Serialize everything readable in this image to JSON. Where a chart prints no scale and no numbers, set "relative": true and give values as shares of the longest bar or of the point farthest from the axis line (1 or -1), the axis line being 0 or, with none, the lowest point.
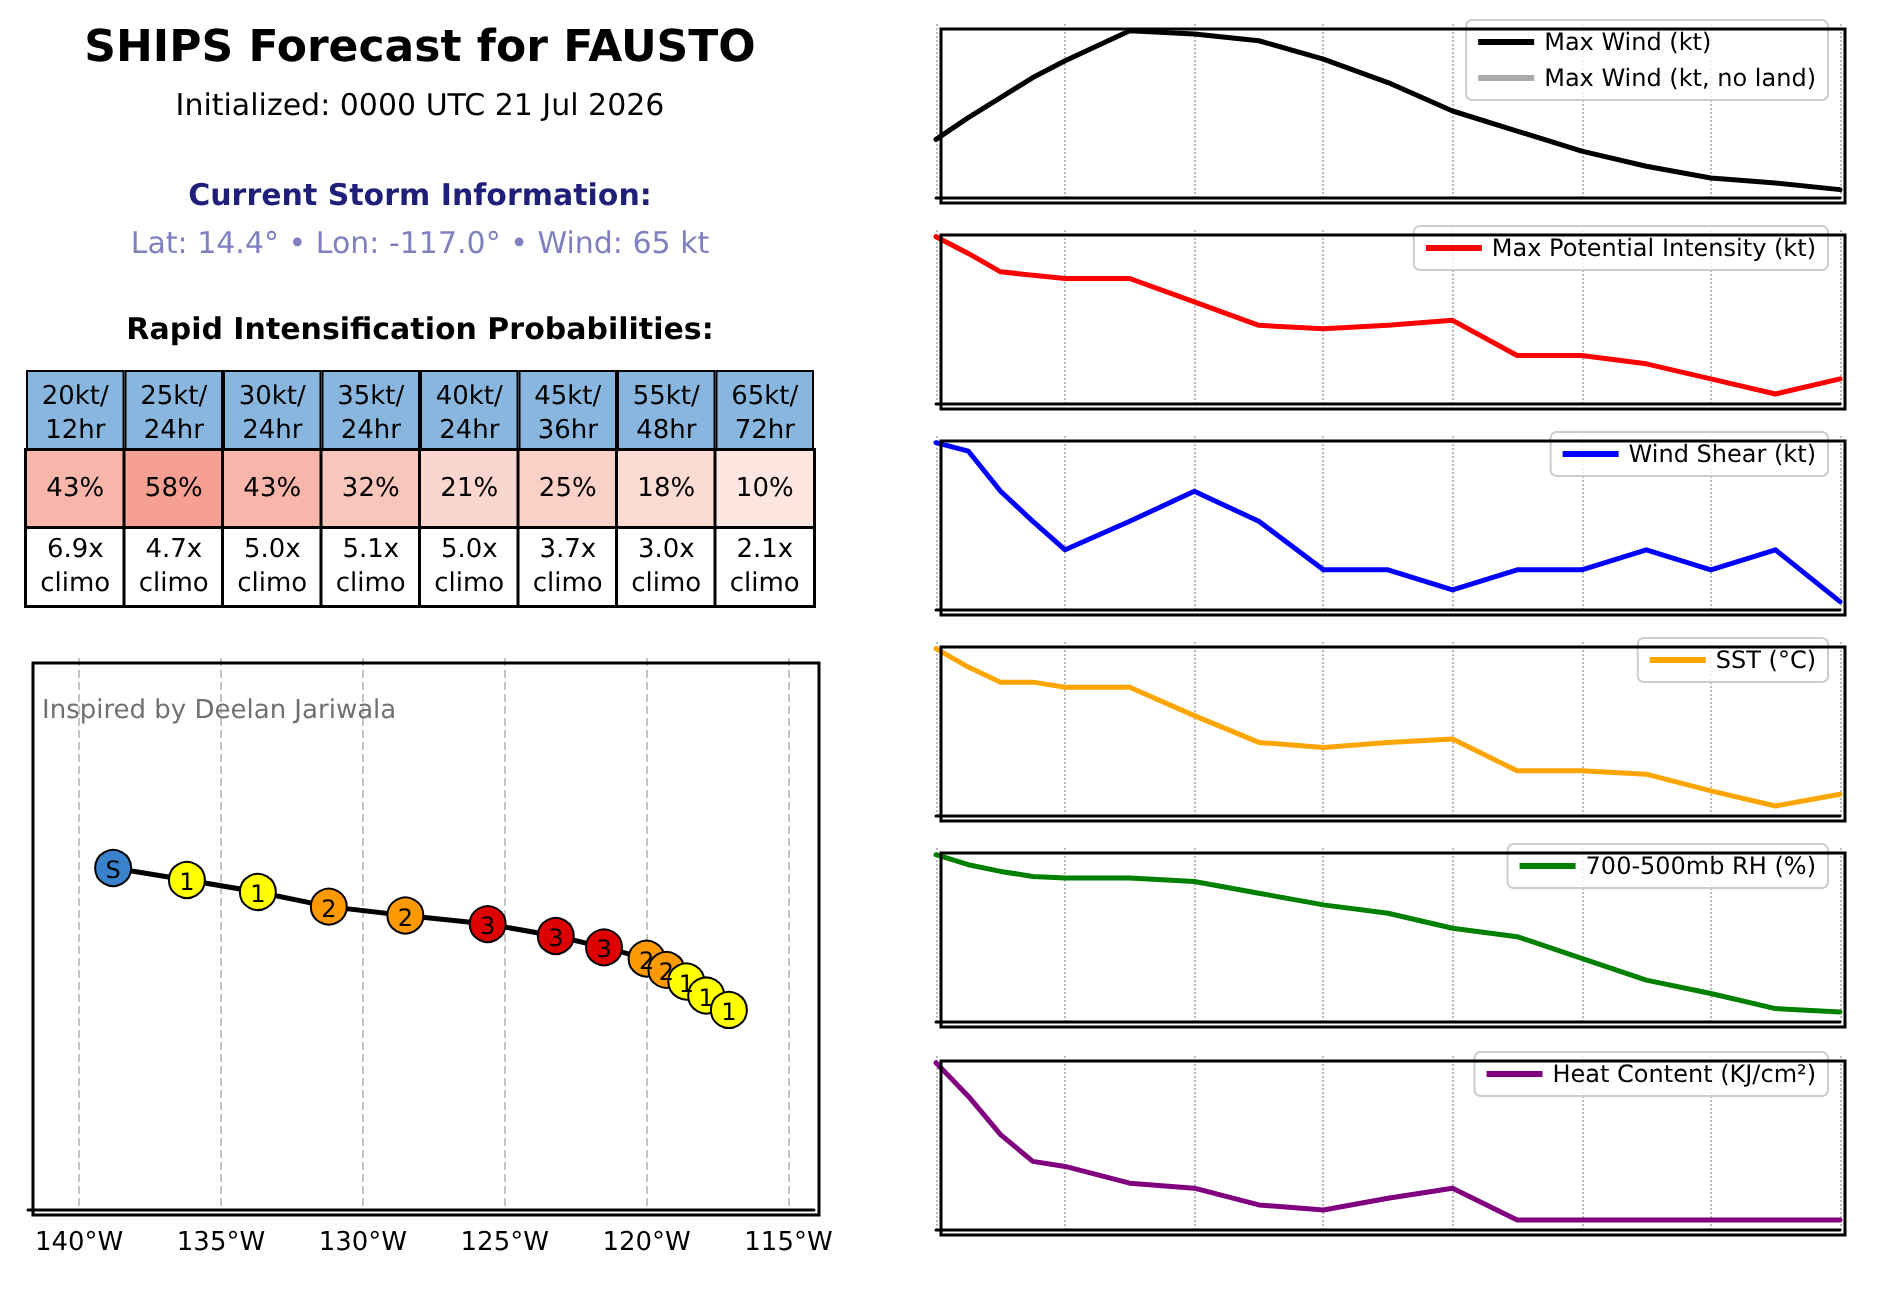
{
  "chart_data": [
    {
      "type": "other",
      "title": "SHIPS Forecast for FAUSTO",
      "subtitle": "Initialized: 0000 UTC 21 Jul 2026",
      "annotations": [
        "Current Storm Information:",
        "Lat: 14.4° • Lon: -117.0° • Wind: 65 kt"
      ]
    },
    {
      "type": "heatmap",
      "title": "Rapid Intensification Probabilities:",
      "categories": [
        "20kt/\n12hr",
        "25kt/\n24hr",
        "30kt/\n24hr",
        "35kt/\n24hr",
        "40kt/\n24hr",
        "45kt/\n36hr",
        "55kt/\n48hr",
        "65kt/\n72hr"
      ],
      "y_categories": [
        null,
        null
      ],
      "cells": [
        [
          43,
          58,
          43,
          32,
          21,
          25,
          18,
          10
        ],
        [
          6.9,
          4.7,
          5.0,
          5.1,
          5.0,
          3.7,
          3.0,
          2.1
        ]
      ],
      "cell_labels": [
        [
          "43%",
          "58%",
          "43%",
          "32%",
          "21%",
          "25%",
          "18%",
          "10%"
        ],
        [
          "6.9x\nclimo",
          "4.7x\nclimo",
          "5.0x\nclimo",
          "5.1x\nclimo",
          "5.0x\nclimo",
          "3.7x\nclimo",
          "3.0x\nclimo",
          "2.1x\nclimo"
        ]
      ]
    },
    {
      "type": "line",
      "relative": true,
      "x": [
        -138.8,
        -136.2,
        -133.7,
        -131.2,
        -128.5,
        -125.6,
        -123.2,
        -121.5,
        -120.0,
        -119.3,
        -118.6,
        -117.9,
        -117.1
      ],
      "series": [
        {
          "color": "#000000",
          "values": [
            1,
            0.965,
            0.93,
            0.887,
            0.861,
            0.836,
            0.801,
            0.768,
            0.735,
            0.702,
            0.668,
            0.627,
            0.585
          ],
          "colors": [
            "#3a82cc",
            "#ffff00",
            "#ffff00",
            "#ff9900",
            "#ff9900",
            "#dd0000",
            "#dd0000",
            "#dd0000",
            "#ff9900",
            "#ff9900",
            "#ffff00",
            "#ffff00",
            "#ffff00"
          ]
        }
      ],
      "xlim": [
        -141.8,
        -114.1
      ],
      "xticks": [
        {
          "value": -140,
          "label": "140°W"
        },
        {
          "value": -135,
          "label": "135°W"
        },
        {
          "value": -130,
          "label": "130°W"
        },
        {
          "value": -125,
          "label": "125°W"
        },
        {
          "value": -120,
          "label": "120°W"
        },
        {
          "value": -115,
          "label": "115°W"
        }
      ],
      "grid": "x",
      "marker": "circle",
      "line_style": "solid",
      "annotations": [
        "Inspired by Deelan Jariwala",
        {
          "text": "S",
          "x": -138.8,
          "y": 1
        },
        {
          "text": "1",
          "x": -136.2,
          "y": 0.965
        },
        {
          "text": "1",
          "x": -133.7,
          "y": 0.93
        },
        {
          "text": "2",
          "x": -131.2,
          "y": 0.887
        },
        {
          "text": "2",
          "x": -128.5,
          "y": 0.861
        },
        {
          "text": "3",
          "x": -125.6,
          "y": 0.836
        },
        {
          "text": "3",
          "x": -123.2,
          "y": 0.801
        },
        {
          "text": "3",
          "x": -121.5,
          "y": 0.768
        },
        {
          "text": "2",
          "x": -120.0,
          "y": 0.735
        },
        {
          "text": "2",
          "x": -119.3,
          "y": 0.702
        },
        {
          "text": "1",
          "x": -118.6,
          "y": 0.668
        },
        {
          "text": "1",
          "x": -117.9,
          "y": 0.627
        },
        {
          "text": "1",
          "x": -117.1,
          "y": 0.585
        }
      ]
    },
    {
      "type": "line",
      "relative": true,
      "categories": [
        null,
        null,
        null,
        null,
        null,
        null,
        null,
        null,
        null,
        null,
        null,
        null,
        null,
        null,
        null,
        null,
        null,
        null,
        null,
        null,
        null,
        null,
        null,
        null,
        null,
        null,
        null,
        null,
        null
      ],
      "series": [
        {
          "name": "Max Wind (kt)",
          "color": "#000000",
          "values": [
            0.35,
            0.48,
            0.6,
            0.72,
            0.82,
            null,
            1,
            null,
            0.98,
            null,
            0.94,
            null,
            0.83,
            null,
            0.69,
            null,
            0.52,
            null,
            0.4,
            null,
            0.28,
            null,
            0.19,
            null,
            0.12,
            null,
            0.09,
            null,
            0.05
          ]
        },
        {
          "name": "Max Wind (kt, no land)",
          "color": "#aaaaaa",
          "values": [
            null,
            null,
            null,
            null,
            null,
            null,
            null,
            null,
            null,
            null,
            null,
            null,
            null,
            null,
            null,
            null,
            null,
            null,
            null,
            null,
            null,
            null,
            null,
            null,
            null,
            null,
            null,
            null,
            null
          ]
        }
      ],
      "grid": "x",
      "legend": "top right",
      "marker": "none",
      "line_style": "solid"
    },
    {
      "type": "line",
      "relative": true,
      "categories": [
        null,
        null,
        null,
        null,
        null,
        null,
        null,
        null,
        null,
        null,
        null,
        null,
        null,
        null,
        null,
        null,
        null,
        null,
        null,
        null,
        null,
        null,
        null,
        null,
        null,
        null,
        null,
        null,
        null
      ],
      "series": [
        {
          "name": "Max Potential Intensity (kt)",
          "color": "#ff0000",
          "values": [
            1,
            0.9,
            0.79,
            0.77,
            0.75,
            null,
            0.75,
            null,
            0.61,
            null,
            0.47,
            null,
            0.45,
            null,
            0.47,
            null,
            0.5,
            null,
            0.29,
            null,
            0.29,
            null,
            0.24,
            null,
            0.15,
            null,
            0.06,
            null,
            0.15
          ]
        }
      ],
      "grid": "x",
      "legend": "top right",
      "marker": "none",
      "line_style": "solid"
    },
    {
      "type": "line",
      "relative": true,
      "categories": [
        null,
        null,
        null,
        null,
        null,
        null,
        null,
        null,
        null,
        null,
        null,
        null,
        null,
        null,
        null,
        null,
        null,
        null,
        null,
        null,
        null,
        null,
        null,
        null,
        null,
        null,
        null,
        null,
        null
      ],
      "series": [
        {
          "name": "Wind Shear (kt)",
          "color": "#0000ff",
          "values": [
            1,
            0.95,
            0.71,
            0.53,
            0.36,
            null,
            0.53,
            null,
            0.71,
            null,
            0.53,
            null,
            0.24,
            null,
            0.24,
            null,
            0.12,
            null,
            0.24,
            null,
            0.24,
            null,
            0.36,
            null,
            0.24,
            null,
            0.36,
            null,
            0.05
          ]
        }
      ],
      "grid": "x",
      "legend": "top right",
      "marker": "none",
      "line_style": "solid"
    },
    {
      "type": "line",
      "relative": true,
      "categories": [
        null,
        null,
        null,
        null,
        null,
        null,
        null,
        null,
        null,
        null,
        null,
        null,
        null,
        null,
        null,
        null,
        null,
        null,
        null,
        null,
        null,
        null,
        null,
        null,
        null,
        null,
        null,
        null,
        null
      ],
      "series": [
        {
          "name": "SST (°C)",
          "color": "#ffa500",
          "values": [
            1,
            0.89,
            0.8,
            0.8,
            0.77,
            null,
            0.77,
            null,
            0.6,
            null,
            0.44,
            null,
            0.41,
            null,
            0.44,
            null,
            0.46,
            null,
            0.27,
            null,
            0.27,
            null,
            0.25,
            null,
            0.15,
            null,
            0.06,
            null,
            0.13
          ]
        }
      ],
      "grid": "x",
      "legend": "top right",
      "marker": "none",
      "line_style": "solid"
    },
    {
      "type": "line",
      "relative": true,
      "categories": [
        null,
        null,
        null,
        null,
        null,
        null,
        null,
        null,
        null,
        null,
        null,
        null,
        null,
        null,
        null,
        null,
        null,
        null,
        null,
        null,
        null,
        null,
        null,
        null,
        null,
        null,
        null,
        null,
        null
      ],
      "series": [
        {
          "name": "700-500mb RH (%)",
          "color": "#008000",
          "values": [
            1,
            0.94,
            0.9,
            0.87,
            0.86,
            null,
            0.86,
            null,
            0.84,
            null,
            0.77,
            null,
            0.7,
            null,
            0.65,
            null,
            0.56,
            null,
            0.51,
            null,
            0.38,
            null,
            0.25,
            null,
            0.17,
            null,
            0.08,
            null,
            0.06
          ]
        }
      ],
      "grid": "x",
      "legend": "top right",
      "marker": "none",
      "line_style": "solid"
    },
    {
      "type": "line",
      "relative": true,
      "categories": [
        null,
        null,
        null,
        null,
        null,
        null,
        null,
        null,
        null,
        null,
        null,
        null,
        null,
        null,
        null,
        null,
        null,
        null,
        null,
        null,
        null,
        null,
        null,
        null,
        null,
        null,
        null,
        null,
        null
      ],
      "series": [
        {
          "name": "Heat Content (KJ/cm²)",
          "color": "#800080",
          "values": [
            1,
            0.8,
            0.57,
            0.41,
            0.38,
            null,
            0.28,
            null,
            0.25,
            null,
            0.15,
            null,
            0.12,
            null,
            0.19,
            null,
            0.25,
            null,
            0.06,
            null,
            0.06,
            null,
            0.06,
            null,
            0.06,
            null,
            0.06,
            null,
            0.06
          ]
        }
      ],
      "grid": "x",
      "legend": "top right",
      "marker": "none",
      "line_style": "solid"
    }
  ]
}
